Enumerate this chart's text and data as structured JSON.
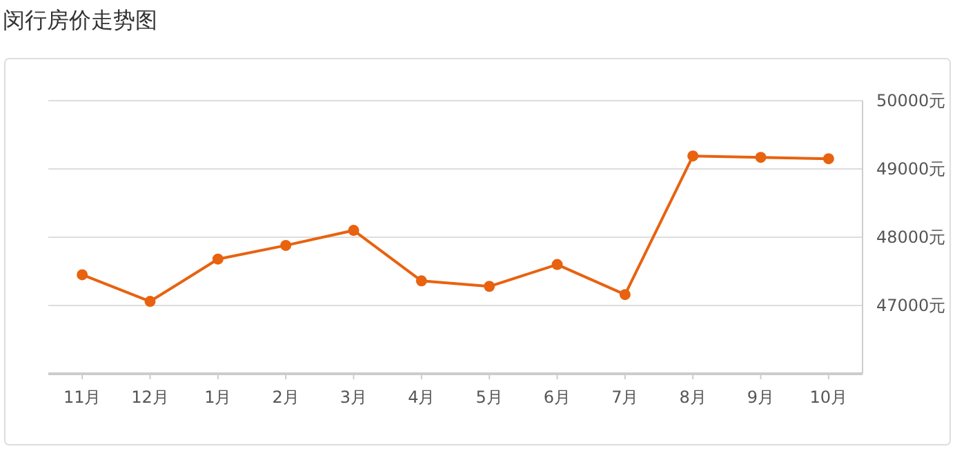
{
  "chart_data": {
    "type": "line",
    "title": "闵行房价走势图",
    "categories": [
      "11月",
      "12月",
      "1月",
      "2月",
      "3月",
      "4月",
      "5月",
      "6月",
      "7月",
      "8月",
      "9月",
      "10月"
    ],
    "series": [
      {
        "color": "#e8620f",
        "values": [
          47450,
          47060,
          47680,
          47880,
          48100,
          47360,
          47280,
          47600,
          47160,
          49190,
          49170,
          49150
        ]
      }
    ],
    "ylim": [
      46000,
      50000
    ],
    "yticks": [
      {
        "value": 47000,
        "label": "47000元"
      },
      {
        "value": 48000,
        "label": "48000元"
      },
      {
        "value": 49000,
        "label": "49000元"
      },
      {
        "value": 50000,
        "label": "50000元"
      }
    ],
    "grid": "y",
    "marker": "circle",
    "line_style": "solid"
  }
}
